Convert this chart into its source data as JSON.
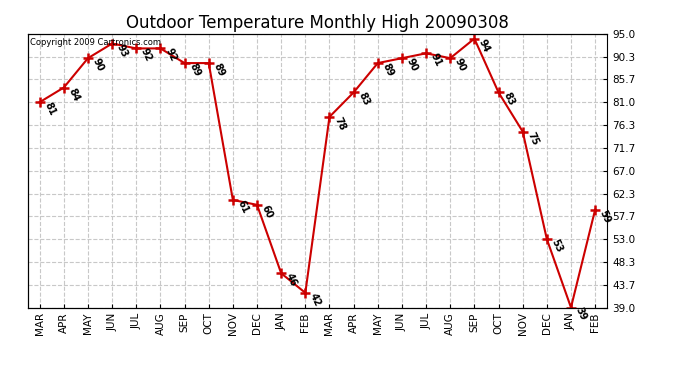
{
  "title": "Outdoor Temperature Monthly High 20090308",
  "copyright": "Copyright 2009 Cartronics.com",
  "months": [
    "MAR",
    "APR",
    "MAY",
    "JUN",
    "JUL",
    "AUG",
    "SEP",
    "OCT",
    "NOV",
    "DEC",
    "JAN",
    "FEB",
    "MAR",
    "APR",
    "MAY",
    "JUN",
    "JUL",
    "AUG",
    "SEP",
    "OCT",
    "NOV",
    "DEC",
    "JAN",
    "FEB"
  ],
  "values": [
    81,
    84,
    90,
    93,
    92,
    92,
    89,
    89,
    61,
    60,
    46,
    42,
    78,
    83,
    89,
    90,
    91,
    90,
    94,
    83,
    75,
    53,
    39,
    59
  ],
  "yticks": [
    39.0,
    43.7,
    48.3,
    53.0,
    57.7,
    62.3,
    67.0,
    71.7,
    76.3,
    81.0,
    85.7,
    90.3,
    95.0
  ],
  "ymin": 39.0,
  "ymax": 95.0,
  "line_color": "#cc0000",
  "marker_color": "#cc0000",
  "bg_color": "#ffffff",
  "grid_color": "#c8c8c8",
  "title_fontsize": 12,
  "label_fontsize": 7,
  "axis_fontsize": 7.5
}
